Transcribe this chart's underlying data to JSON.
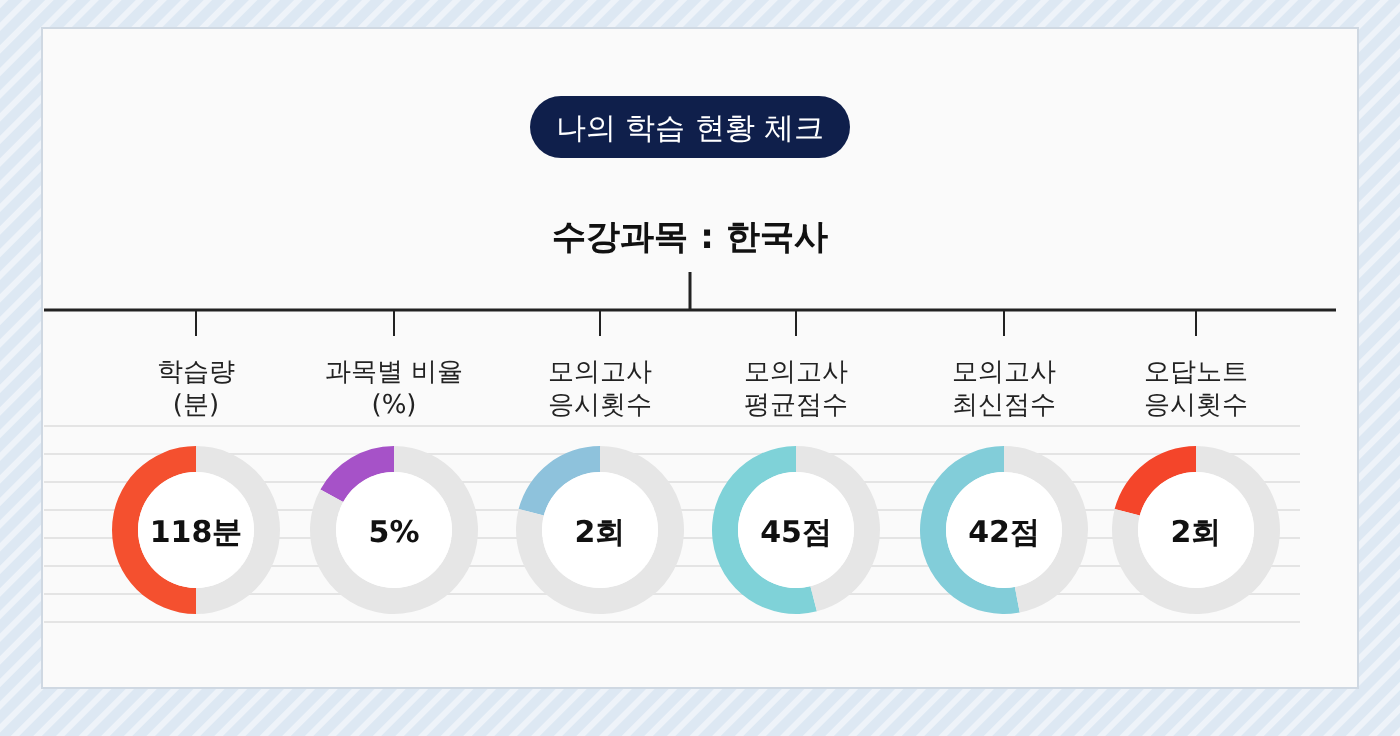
{
  "chart_data": [
    {
      "type": "other",
      "title": "나의 학습 현황 체크",
      "subtitle": "수강과목 : 한국사"
    },
    {
      "type": "donut",
      "title": "학습량\n(분)",
      "categories": [
        null,
        null
      ],
      "values": [
        50,
        50
      ],
      "colors": [
        "#f4502f",
        "#e6e6e6"
      ],
      "annotations": [
        "118분"
      ]
    },
    {
      "type": "donut",
      "title": "과목별 비율\n(%)",
      "categories": [
        null,
        null
      ],
      "values": [
        17,
        83
      ],
      "colors": [
        "#a652c8",
        "#e6e6e6"
      ],
      "annotations": [
        "5%"
      ]
    },
    {
      "type": "donut",
      "title": "모의고사\n응시횟수",
      "categories": [
        null,
        null
      ],
      "values": [
        21,
        79
      ],
      "colors": [
        "#8ec2dc",
        "#e6e6e6"
      ],
      "annotations": [
        "2회"
      ]
    },
    {
      "type": "donut",
      "title": "모의고사\n평균점수",
      "categories": [
        null,
        null
      ],
      "values": [
        54,
        46
      ],
      "colors": [
        "#7fd2d8",
        "#e6e6e6"
      ],
      "annotations": [
        "45점"
      ]
    },
    {
      "type": "donut",
      "title": "모의고사\n최신점수",
      "categories": [
        null,
        null
      ],
      "values": [
        53,
        47
      ],
      "colors": [
        "#82cdd9",
        "#e6e6e6"
      ],
      "annotations": [
        "42점"
      ]
    },
    {
      "type": "donut",
      "title": "오답노트\n응시횟수",
      "categories": [
        null,
        null
      ],
      "values": [
        21,
        79
      ],
      "colors": [
        "#f4452a",
        "#e6e6e6"
      ],
      "annotations": [
        "2회"
      ]
    }
  ]
}
